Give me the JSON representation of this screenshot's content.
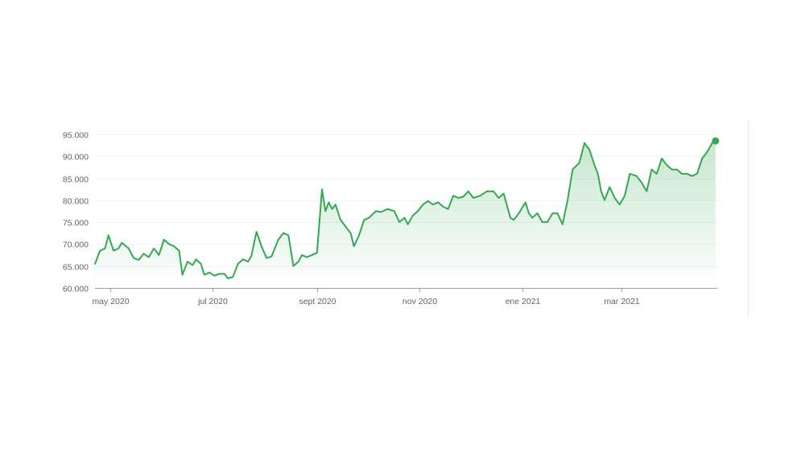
{
  "chart_data": {
    "type": "area",
    "title": "",
    "xlabel": "",
    "ylabel": "",
    "ylim": [
      60000,
      95000
    ],
    "grid": true,
    "y_ticks": [
      {
        "value": 60000,
        "label": "60.000"
      },
      {
        "value": 65000,
        "label": "65.000"
      },
      {
        "value": 70000,
        "label": "70.000"
      },
      {
        "value": 75000,
        "label": "75.000"
      },
      {
        "value": 80000,
        "label": "80.000"
      },
      {
        "value": 85000,
        "label": "85.000"
      },
      {
        "value": 90000,
        "label": "90.000"
      },
      {
        "value": 95000,
        "label": "95.000"
      }
    ],
    "x_ticks": [
      {
        "date": "2020-05-01",
        "label": "may 2020"
      },
      {
        "date": "2020-07-01",
        "label": "jul 2020"
      },
      {
        "date": "2020-09-01",
        "label": "sept 2020"
      },
      {
        "date": "2020-11-01",
        "label": "nov 2020"
      },
      {
        "date": "2021-01-01",
        "label": "ene 2021"
      },
      {
        "date": "2021-03-01",
        "label": "mar 2021"
      }
    ],
    "xlim": [
      "2020-04-22",
      "2021-04-27"
    ],
    "line_color": "#34a853",
    "fill_color": "#34a853",
    "series": [
      {
        "values": [
          [
            "2020-04-22",
            65500
          ],
          [
            "2020-04-25",
            68500
          ],
          [
            "2020-04-28",
            69000
          ],
          [
            "2020-04-30",
            72000
          ],
          [
            "2020-05-03",
            68500
          ],
          [
            "2020-05-06",
            69000
          ],
          [
            "2020-05-08",
            70300
          ],
          [
            "2020-05-12",
            69000
          ],
          [
            "2020-05-15",
            66800
          ],
          [
            "2020-05-18",
            66400
          ],
          [
            "2020-05-21",
            67800
          ],
          [
            "2020-05-24",
            67000
          ],
          [
            "2020-05-27",
            69000
          ],
          [
            "2020-05-30",
            67500
          ],
          [
            "2020-06-02",
            71000
          ],
          [
            "2020-06-05",
            70000
          ],
          [
            "2020-06-08",
            69500
          ],
          [
            "2020-06-11",
            68500
          ],
          [
            "2020-06-13",
            63000
          ],
          [
            "2020-06-16",
            66000
          ],
          [
            "2020-06-19",
            65200
          ],
          [
            "2020-06-21",
            66500
          ],
          [
            "2020-06-24",
            65500
          ],
          [
            "2020-06-26",
            63000
          ],
          [
            "2020-06-29",
            63500
          ],
          [
            "2020-07-02",
            62800
          ],
          [
            "2020-07-05",
            63200
          ],
          [
            "2020-07-08",
            63200
          ],
          [
            "2020-07-10",
            62200
          ],
          [
            "2020-07-13",
            62500
          ],
          [
            "2020-07-16",
            65500
          ],
          [
            "2020-07-19",
            66500
          ],
          [
            "2020-07-22",
            66000
          ],
          [
            "2020-07-24",
            67300
          ],
          [
            "2020-07-27",
            72800
          ],
          [
            "2020-07-30",
            69500
          ],
          [
            "2020-08-02",
            66800
          ],
          [
            "2020-08-05",
            67200
          ],
          [
            "2020-08-09",
            71000
          ],
          [
            "2020-08-12",
            72500
          ],
          [
            "2020-08-15",
            72000
          ],
          [
            "2020-08-18",
            65000
          ],
          [
            "2020-08-21",
            66000
          ],
          [
            "2020-08-23",
            67500
          ],
          [
            "2020-08-26",
            67000
          ],
          [
            "2020-08-29",
            67500
          ],
          [
            "2020-09-01",
            68000
          ],
          [
            "2020-09-04",
            82500
          ],
          [
            "2020-09-06",
            77500
          ],
          [
            "2020-09-08",
            79500
          ],
          [
            "2020-09-10",
            78000
          ],
          [
            "2020-09-12",
            79000
          ],
          [
            "2020-09-15",
            75500
          ],
          [
            "2020-09-18",
            74000
          ],
          [
            "2020-09-21",
            72500
          ],
          [
            "2020-09-23",
            69500
          ],
          [
            "2020-09-26",
            72000
          ],
          [
            "2020-09-29",
            75500
          ],
          [
            "2020-10-02",
            76000
          ],
          [
            "2020-10-06",
            77500
          ],
          [
            "2020-10-09",
            77300
          ],
          [
            "2020-10-13",
            78000
          ],
          [
            "2020-10-17",
            77500
          ],
          [
            "2020-10-20",
            75000
          ],
          [
            "2020-10-23",
            76000
          ],
          [
            "2020-10-25",
            74500
          ],
          [
            "2020-10-28",
            76500
          ],
          [
            "2020-10-31",
            77500
          ],
          [
            "2020-11-03",
            79000
          ],
          [
            "2020-11-06",
            79800
          ],
          [
            "2020-11-09",
            79000
          ],
          [
            "2020-11-12",
            79500
          ],
          [
            "2020-11-15",
            78500
          ],
          [
            "2020-11-18",
            78000
          ],
          [
            "2020-11-21",
            81000
          ],
          [
            "2020-11-24",
            80500
          ],
          [
            "2020-11-27",
            80800
          ],
          [
            "2020-11-30",
            82000
          ],
          [
            "2020-12-03",
            80500
          ],
          [
            "2020-12-07",
            81000
          ],
          [
            "2020-12-11",
            82000
          ],
          [
            "2020-12-15",
            82000
          ],
          [
            "2020-12-18",
            80500
          ],
          [
            "2020-12-21",
            81500
          ],
          [
            "2020-12-25",
            76000
          ],
          [
            "2020-12-27",
            75500
          ],
          [
            "2020-12-30",
            77000
          ],
          [
            "2021-01-03",
            79500
          ],
          [
            "2021-01-05",
            77000
          ],
          [
            "2021-01-07",
            76000
          ],
          [
            "2021-01-10",
            77000
          ],
          [
            "2021-01-13",
            75000
          ],
          [
            "2021-01-16",
            75000
          ],
          [
            "2021-01-19",
            77000
          ],
          [
            "2021-01-22",
            77000
          ],
          [
            "2021-01-25",
            74500
          ],
          [
            "2021-01-28",
            80000
          ],
          [
            "2021-01-31",
            87000
          ],
          [
            "2021-02-04",
            88500
          ],
          [
            "2021-02-07",
            93000
          ],
          [
            "2021-02-10",
            91500
          ],
          [
            "2021-02-13",
            88000
          ],
          [
            "2021-02-15",
            86000
          ],
          [
            "2021-02-17",
            82000
          ],
          [
            "2021-02-19",
            80000
          ],
          [
            "2021-02-22",
            83000
          ],
          [
            "2021-02-25",
            80500
          ],
          [
            "2021-02-28",
            79000
          ],
          [
            "2021-03-03",
            81000
          ],
          [
            "2021-03-06",
            86000
          ],
          [
            "2021-03-10",
            85500
          ],
          [
            "2021-03-13",
            84000
          ],
          [
            "2021-03-16",
            82000
          ],
          [
            "2021-03-19",
            87000
          ],
          [
            "2021-03-22",
            86000
          ],
          [
            "2021-03-25",
            89500
          ],
          [
            "2021-03-28",
            88000
          ],
          [
            "2021-03-31",
            87000
          ],
          [
            "2021-04-03",
            87000
          ],
          [
            "2021-04-06",
            86000
          ],
          [
            "2021-04-09",
            86000
          ],
          [
            "2021-04-12",
            85500
          ],
          [
            "2021-04-15",
            86000
          ],
          [
            "2021-04-18",
            89500
          ],
          [
            "2021-04-21",
            91000
          ],
          [
            "2021-04-24",
            93000
          ],
          [
            "2021-04-26",
            93500
          ]
        ]
      }
    ]
  }
}
